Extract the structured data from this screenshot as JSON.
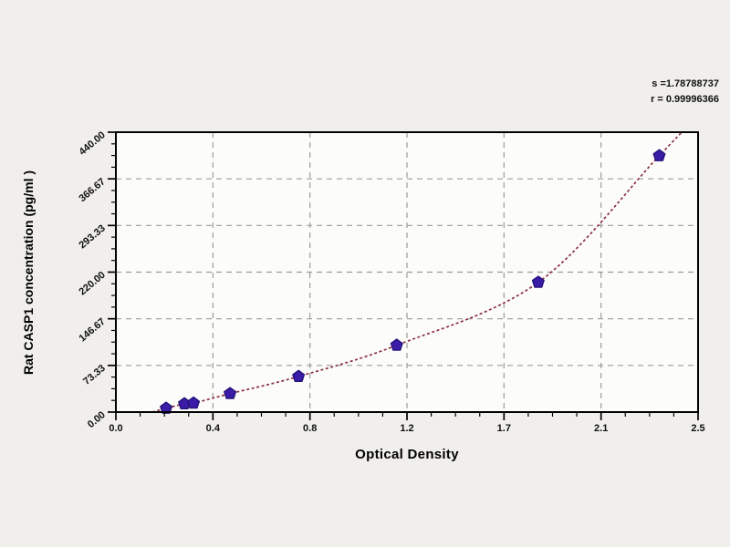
{
  "page": {
    "background": "#f0efeb",
    "description": "ELISA standard curve plot"
  },
  "stats": {
    "s_line": "s =1.78788737",
    "r_line": "r = 0.99996366",
    "s_value": "1.78788737",
    "r_value": "0.99996366"
  },
  "chart_data": {
    "type": "scatter",
    "title": "",
    "xlabel": "Optical Density",
    "ylabel": "Rat CASP1 concentration (pg/ml )",
    "xlim": [
      0,
      2.55
    ],
    "ylim": [
      0,
      440
    ],
    "x_ticks": [
      "0.0",
      "0.4",
      "0.8",
      "1.2",
      "1.7",
      "2.1",
      "2.5"
    ],
    "y_ticks": [
      "0.00",
      "73.33",
      "146.67",
      "220.00",
      "293.33",
      "366.67",
      "440.00"
    ],
    "minor_ticks_per_major": 3,
    "grid": "dashed gray lines at major ticks, both axes",
    "legend": "none",
    "points": [
      {
        "od": 0.22,
        "conc": 6
      },
      {
        "od": 0.3,
        "conc": 13
      },
      {
        "od": 0.34,
        "conc": 14
      },
      {
        "od": 0.5,
        "conc": 29
      },
      {
        "od": 0.8,
        "conc": 56
      },
      {
        "od": 1.23,
        "conc": 105
      },
      {
        "od": 1.85,
        "conc": 204
      },
      {
        "od": 2.38,
        "conc": 403
      }
    ],
    "curve": {
      "style": "thin dashed dark-red fitted curve through points",
      "start": {
        "od": 0.16,
        "conc": 0
      },
      "extend_to": {
        "od": 2.6,
        "conc": 485
      }
    },
    "colors": {
      "page_bg": "#f0efeb",
      "plot_bg": "#fcfcfa",
      "frame": "#000000",
      "grid": "#9b9b9b",
      "curve": "#8b3140",
      "marker": "#3a1ca8",
      "marker_edge": "#26117a",
      "text": "#111111"
    }
  }
}
